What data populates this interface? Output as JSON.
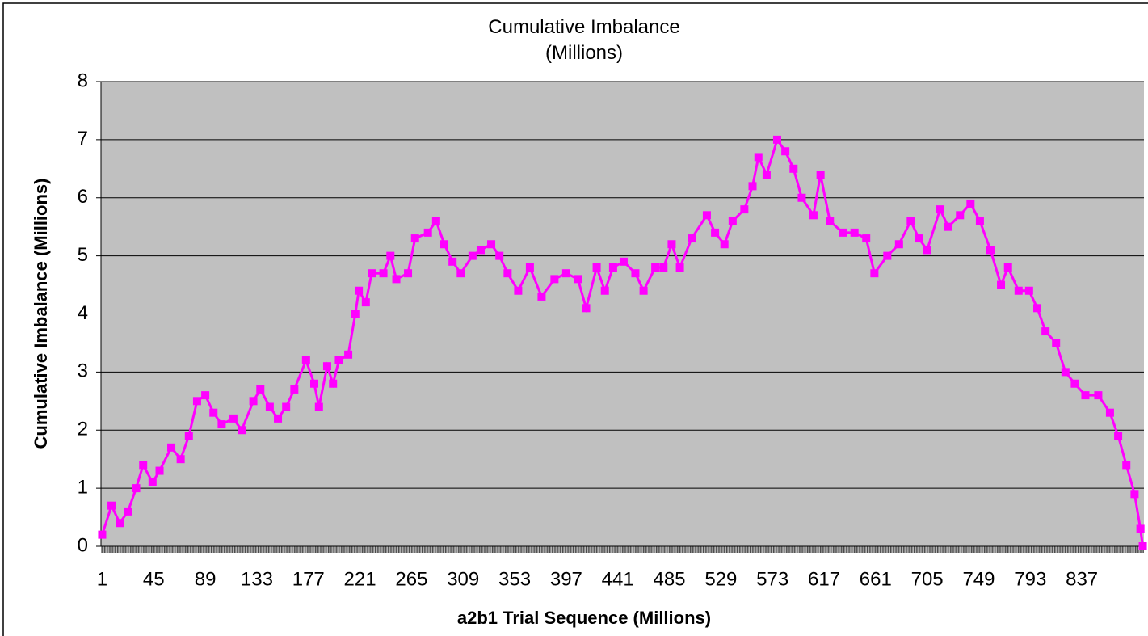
{
  "chart_data": {
    "type": "line",
    "title": "Cumulative Imbalance (Millions)",
    "x_label": "a2b1 Trial Sequence (Millions)",
    "y_label": "Cumulative Imbalance (Millions)",
    "xlim": [
      0,
      890
    ],
    "xticks": [
      1,
      45,
      89,
      133,
      177,
      221,
      265,
      309,
      353,
      397,
      441,
      485,
      529,
      573,
      617,
      661,
      705,
      749,
      793,
      837
    ],
    "ylim": [
      0,
      8
    ],
    "yticks": [
      0,
      1,
      2,
      3,
      4,
      5,
      6,
      7,
      8
    ],
    "grid": true,
    "background": "#c0c0c0",
    "x": [
      1,
      9,
      16,
      23,
      30,
      36,
      44,
      50,
      60,
      68,
      75,
      82,
      89,
      96,
      103,
      113,
      120,
      130,
      136,
      144,
      151,
      158,
      165,
      175,
      182,
      186,
      193,
      198,
      203,
      211,
      217,
      220,
      226,
      231,
      241,
      247,
      252,
      262,
      268,
      279,
      286,
      293,
      300,
      307,
      317,
      324,
      333,
      340,
      347,
      356,
      366,
      376,
      387,
      397,
      407,
      414,
      423,
      430,
      437,
      446,
      456,
      463,
      473,
      480,
      487,
      494,
      504,
      517,
      524,
      532,
      539,
      549,
      556,
      561,
      568,
      577,
      584,
      591,
      598,
      608,
      614,
      622,
      633,
      643,
      653,
      660,
      671,
      681,
      691,
      698,
      705,
      716,
      723,
      733,
      742,
      750,
      759,
      768,
      774,
      783,
      792,
      799,
      806,
      815,
      823,
      831,
      840,
      851,
      861,
      868,
      875,
      882,
      887,
      889
    ],
    "series": [
      {
        "name": "Cumulative Imbalance",
        "color": "#ff00ff",
        "values": [
          0.2,
          0.7,
          0.4,
          0.6,
          1.0,
          1.4,
          1.1,
          1.3,
          1.7,
          1.5,
          1.9,
          2.5,
          2.6,
          2.3,
          2.1,
          2.2,
          2.0,
          2.5,
          2.7,
          2.4,
          2.2,
          2.4,
          2.7,
          3.2,
          2.8,
          2.4,
          3.1,
          2.8,
          3.2,
          3.3,
          4.0,
          4.4,
          4.2,
          4.7,
          4.7,
          5.0,
          4.6,
          4.7,
          5.3,
          5.4,
          5.6,
          5.2,
          4.9,
          4.7,
          5.0,
          5.1,
          5.2,
          5.0,
          4.7,
          4.4,
          4.8,
          4.3,
          4.6,
          4.7,
          4.6,
          4.1,
          4.8,
          4.4,
          4.8,
          4.9,
          4.7,
          4.4,
          4.8,
          4.8,
          5.2,
          4.8,
          5.3,
          5.7,
          5.4,
          5.2,
          5.6,
          5.8,
          6.2,
          6.7,
          6.4,
          7.0,
          6.8,
          6.5,
          6.0,
          5.7,
          6.4,
          5.6,
          5.4,
          5.4,
          5.3,
          4.7,
          5.0,
          5.2,
          5.6,
          5.3,
          5.1,
          5.8,
          5.5,
          5.7,
          5.9,
          5.6,
          5.1,
          4.5,
          4.8,
          4.4,
          4.4,
          4.1,
          3.7,
          3.5,
          3.0,
          2.8,
          2.6,
          2.6,
          2.3,
          1.9,
          1.4,
          0.9,
          0.3,
          0
        ]
      }
    ]
  }
}
